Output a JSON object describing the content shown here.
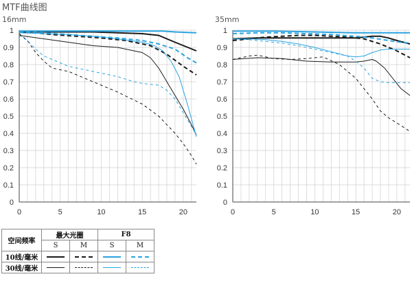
{
  "title": "MTF曲线图",
  "colors": {
    "black": "#1a1a1a",
    "blue": "#29a3e0",
    "grid": "#cfcfcf",
    "axis": "#444444"
  },
  "chart_data": [
    {
      "type": "line",
      "title": "16mm",
      "xlim": [
        0,
        21.6
      ],
      "ylim": [
        0,
        1
      ],
      "xticks": [
        0,
        5,
        10,
        15,
        20
      ],
      "yticks": [
        0,
        0.1,
        0.2,
        0.3,
        0.4,
        0.5,
        0.6,
        0.7,
        0.8,
        0.9,
        1
      ],
      "ytick_labels": [
        "0",
        "0.1",
        "0.2",
        "0.3",
        "0.4",
        "0.5",
        "0.6",
        "0.7",
        "0.8",
        "0.9",
        "1"
      ],
      "grid": true,
      "series": [
        {
          "aperture": "最大光圈",
          "freq": "10",
          "dir": "S",
          "x": [
            0,
            3,
            6,
            9,
            12,
            15,
            17,
            19,
            21.6
          ],
          "y": [
            0.99,
            0.99,
            0.99,
            0.99,
            0.985,
            0.98,
            0.97,
            0.93,
            0.88
          ]
        },
        {
          "aperture": "最大光圈",
          "freq": "10",
          "dir": "M",
          "x": [
            0,
            2,
            4,
            7,
            10,
            13,
            16,
            18,
            20,
            21.6
          ],
          "y": [
            0.99,
            0.985,
            0.975,
            0.965,
            0.955,
            0.94,
            0.91,
            0.86,
            0.79,
            0.74
          ]
        },
        {
          "aperture": "最大光圈",
          "freq": "30",
          "dir": "S",
          "x": [
            0,
            3,
            6,
            9,
            12,
            15,
            16,
            17,
            18,
            19,
            20,
            21,
            21.6
          ],
          "y": [
            0.97,
            0.95,
            0.93,
            0.91,
            0.9,
            0.87,
            0.84,
            0.78,
            0.7,
            0.62,
            0.54,
            0.45,
            0.39
          ]
        },
        {
          "aperture": "最大光圈",
          "freq": "30",
          "dir": "M",
          "x": [
            0,
            1,
            2,
            3,
            4,
            5,
            6,
            8,
            10,
            12,
            15,
            17,
            19,
            20,
            21,
            21.6
          ],
          "y": [
            0.98,
            0.94,
            0.87,
            0.82,
            0.78,
            0.77,
            0.76,
            0.72,
            0.68,
            0.64,
            0.57,
            0.5,
            0.4,
            0.34,
            0.27,
            0.22
          ]
        },
        {
          "aperture": "F8",
          "freq": "10",
          "dir": "S",
          "x": [
            0,
            5,
            10,
            15,
            17.5,
            19,
            21.6
          ],
          "y": [
            0.995,
            0.995,
            0.995,
            0.995,
            0.995,
            0.99,
            0.985
          ]
        },
        {
          "aperture": "F8",
          "freq": "10",
          "dir": "M",
          "x": [
            0,
            3,
            6,
            9,
            12,
            15,
            17,
            19,
            20.5,
            21.6
          ],
          "y": [
            0.99,
            0.985,
            0.975,
            0.965,
            0.955,
            0.94,
            0.92,
            0.89,
            0.84,
            0.81
          ]
        },
        {
          "aperture": "F8",
          "freq": "30",
          "dir": "S",
          "x": [
            0,
            3,
            6,
            9,
            12,
            15,
            16.5,
            17.5,
            18.5,
            19.5,
            20.5,
            21.6
          ],
          "y": [
            0.985,
            0.98,
            0.975,
            0.965,
            0.95,
            0.93,
            0.91,
            0.88,
            0.82,
            0.73,
            0.57,
            0.38
          ]
        },
        {
          "aperture": "F8",
          "freq": "30",
          "dir": "M",
          "x": [
            0,
            1,
            2,
            3,
            4,
            5,
            6,
            8,
            10,
            12,
            14,
            15,
            17,
            18,
            19,
            20,
            21,
            21.6
          ],
          "y": [
            0.97,
            0.94,
            0.89,
            0.85,
            0.83,
            0.81,
            0.79,
            0.77,
            0.75,
            0.73,
            0.7,
            0.69,
            0.68,
            0.65,
            0.6,
            0.52,
            0.44,
            0.39
          ]
        }
      ]
    },
    {
      "type": "line",
      "title": "35mm",
      "xlim": [
        0,
        21.6
      ],
      "ylim": [
        0,
        1
      ],
      "xticks": [
        0,
        5,
        10,
        15,
        20
      ],
      "yticks": [
        0,
        0.1,
        0.2,
        0.3,
        0.4,
        0.5,
        0.6,
        0.7,
        0.8,
        0.9,
        1
      ],
      "ytick_labels": [
        "0",
        "0.1",
        "0.2",
        "0.3",
        "0.4",
        "0.5",
        "0.6",
        "0.7",
        "0.8",
        "0.9",
        "1"
      ],
      "grid": true,
      "series": [
        {
          "aperture": "最大光圈",
          "freq": "10",
          "dir": "S",
          "x": [
            0,
            3,
            6,
            9,
            12,
            15,
            16,
            17,
            18,
            19,
            20,
            21.6
          ],
          "y": [
            0.95,
            0.955,
            0.955,
            0.955,
            0.955,
            0.955,
            0.96,
            0.965,
            0.965,
            0.955,
            0.94,
            0.92
          ]
        },
        {
          "aperture": "最大光圈",
          "freq": "10",
          "dir": "M",
          "x": [
            0,
            2,
            4,
            6,
            8,
            10,
            12,
            14,
            16,
            18,
            20,
            21.6
          ],
          "y": [
            0.94,
            0.95,
            0.96,
            0.965,
            0.97,
            0.97,
            0.965,
            0.96,
            0.95,
            0.92,
            0.88,
            0.84
          ]
        },
        {
          "aperture": "最大光圈",
          "freq": "30",
          "dir": "S",
          "x": [
            0,
            3,
            6,
            9,
            12,
            15,
            16,
            17,
            17.5,
            18.5,
            19.5,
            20.5,
            21.6
          ],
          "y": [
            0.83,
            0.84,
            0.835,
            0.82,
            0.815,
            0.815,
            0.82,
            0.83,
            0.82,
            0.78,
            0.72,
            0.66,
            0.62
          ]
        },
        {
          "aperture": "最大光圈",
          "freq": "30",
          "dir": "M",
          "x": [
            0,
            1,
            2,
            3,
            4,
            5,
            7,
            9,
            11,
            13,
            15,
            17,
            18,
            19,
            20,
            21,
            21.6
          ],
          "y": [
            0.83,
            0.84,
            0.85,
            0.855,
            0.845,
            0.835,
            0.83,
            0.835,
            0.845,
            0.8,
            0.72,
            0.6,
            0.53,
            0.49,
            0.46,
            0.43,
            0.41
          ]
        },
        {
          "aperture": "F8",
          "freq": "10",
          "dir": "S",
          "x": [
            0,
            5,
            10,
            15,
            20,
            21.6
          ],
          "y": [
            0.995,
            0.995,
            0.99,
            0.985,
            0.985,
            0.985
          ]
        },
        {
          "aperture": "F8",
          "freq": "10",
          "dir": "M",
          "x": [
            0,
            3,
            6,
            9,
            12,
            15,
            17,
            19,
            20.5,
            21.6
          ],
          "y": [
            0.98,
            0.985,
            0.985,
            0.98,
            0.975,
            0.965,
            0.955,
            0.94,
            0.93,
            0.925
          ]
        },
        {
          "aperture": "F8",
          "freq": "30",
          "dir": "S",
          "x": [
            0,
            2,
            4,
            6,
            8,
            10,
            12,
            14,
            15,
            16,
            17,
            18,
            19,
            20,
            21,
            21.6
          ],
          "y": [
            0.95,
            0.95,
            0.945,
            0.935,
            0.92,
            0.9,
            0.875,
            0.85,
            0.845,
            0.85,
            0.87,
            0.885,
            0.89,
            0.89,
            0.89,
            0.89
          ]
        },
        {
          "aperture": "F8",
          "freq": "30",
          "dir": "M",
          "x": [
            0,
            2,
            4,
            6,
            8,
            10,
            12,
            14,
            15,
            16,
            17,
            18,
            19,
            20,
            21,
            21.6
          ],
          "y": [
            0.95,
            0.945,
            0.935,
            0.925,
            0.91,
            0.89,
            0.87,
            0.85,
            0.82,
            0.78,
            0.72,
            0.7,
            0.695,
            0.695,
            0.695,
            0.695
          ]
        }
      ]
    }
  ],
  "legend": {
    "freq_header": "空间频率",
    "aperture_max": "最大光圈",
    "aperture_f8": "F8",
    "dir_s": "S",
    "dir_m": "M",
    "row10": "10线/毫米",
    "row30": "30线/毫米"
  }
}
